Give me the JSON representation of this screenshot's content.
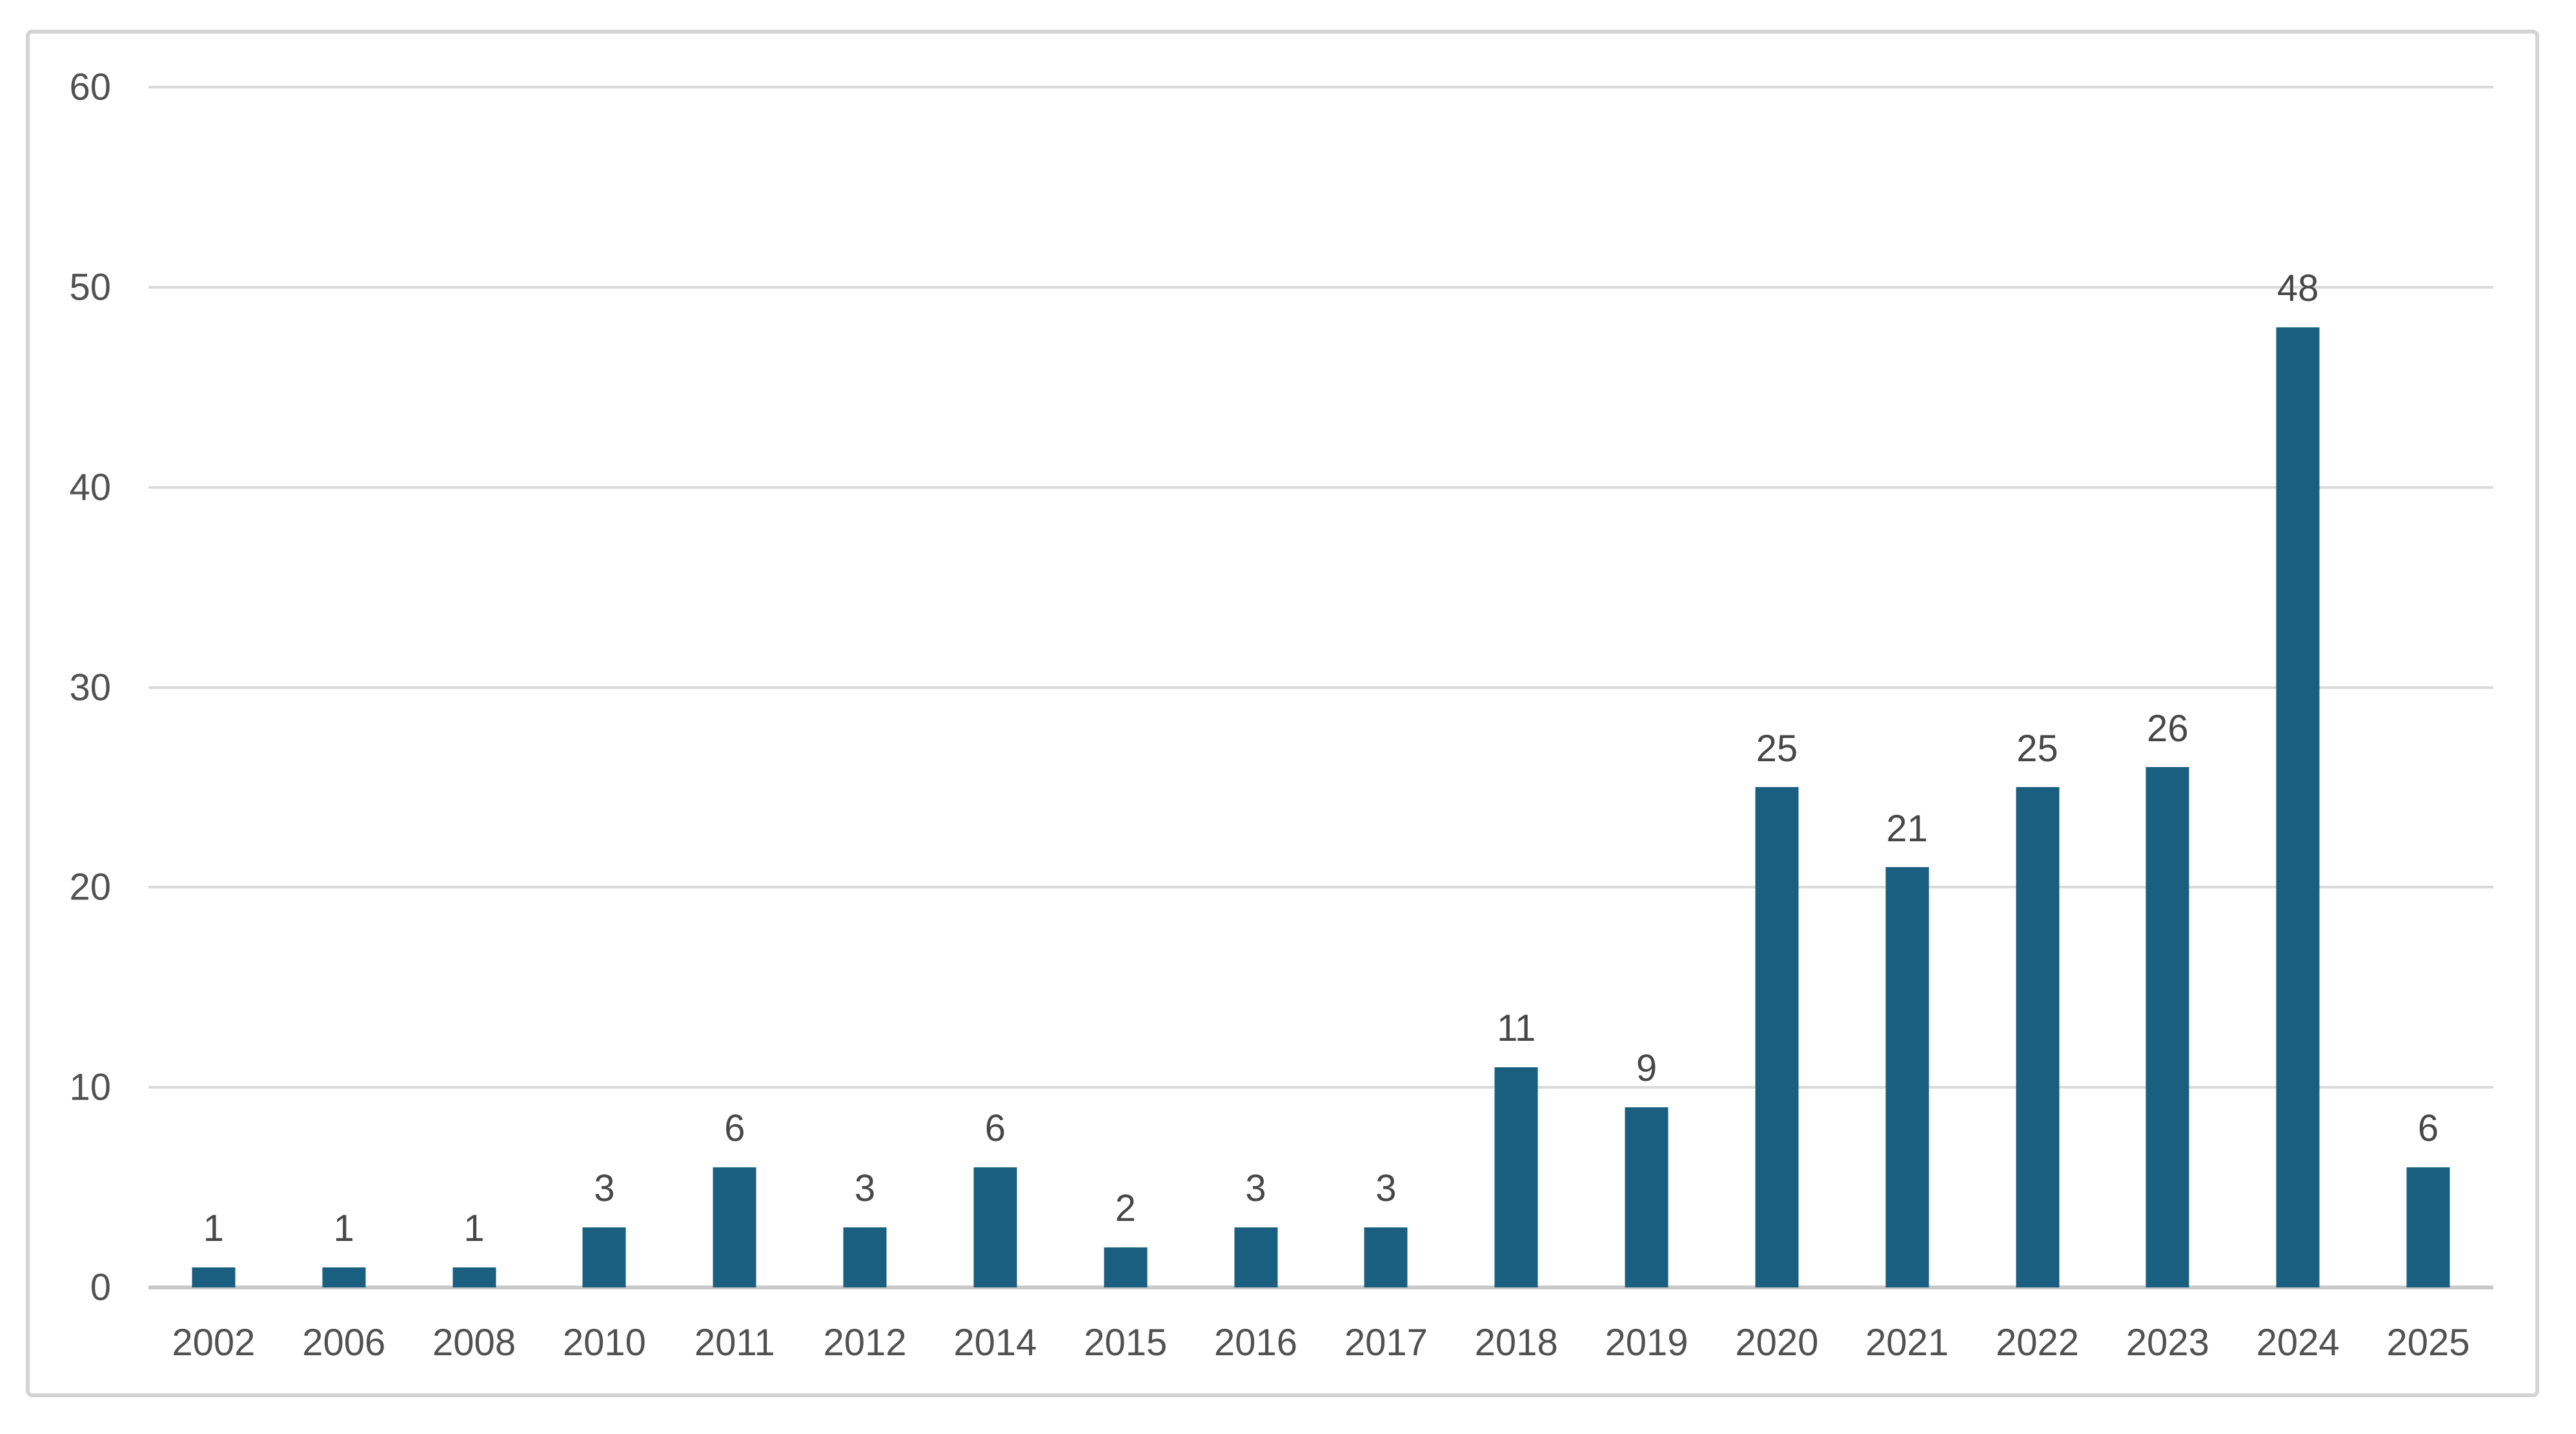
{
  "chart_data": {
    "type": "bar",
    "title": "",
    "xlabel": "",
    "ylabel": "",
    "categories": [
      "2002",
      "2006",
      "2008",
      "2010",
      "2011",
      "2012",
      "2014",
      "2015",
      "2016",
      "2017",
      "2018",
      "2019",
      "2020",
      "2021",
      "2022",
      "2023",
      "2024",
      "2025"
    ],
    "values": [
      1,
      1,
      1,
      3,
      6,
      3,
      6,
      2,
      3,
      3,
      11,
      9,
      25,
      21,
      25,
      26,
      48,
      6
    ],
    "data_labels": [
      "1",
      "1",
      "1",
      "3",
      "6",
      "3",
      "6",
      "2",
      "3",
      "3",
      "11",
      "9",
      "25",
      "21",
      "25",
      "26",
      "48",
      "6"
    ],
    "ylim": [
      0,
      60
    ],
    "yticks": [
      0,
      10,
      20,
      30,
      40,
      50,
      60
    ],
    "grid": true,
    "legend": "none",
    "colors": {
      "bar": "#1b5f80",
      "gridline": "#dadada",
      "axis_line": "#c9c9c9",
      "tick_label": "#515151",
      "data_label": "#474747",
      "frame_border": "#d4d4d4",
      "background": "#ffffff"
    }
  }
}
